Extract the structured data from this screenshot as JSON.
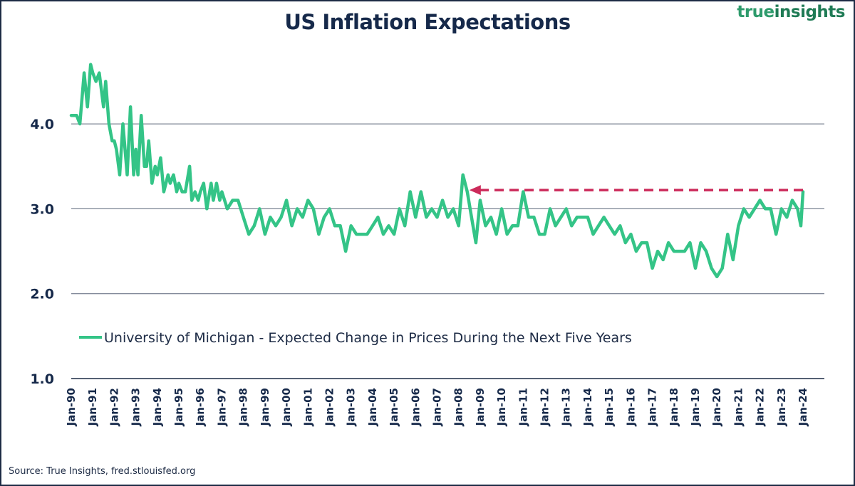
{
  "header": {
    "title": "US Inflation Expectations",
    "brand_part1": "true",
    "brand_part2": "insights"
  },
  "footer": {
    "source": "Source: True Insights, fred.stlouisfed.org"
  },
  "colors": {
    "series": "#34c487",
    "arrow": "#cc2a5a",
    "text": "#16294a",
    "grid": "#5a6478",
    "frame": "#1d2b45"
  },
  "chart_data": {
    "type": "line",
    "title": "US Inflation Expectations",
    "xlabel": "",
    "ylabel": "",
    "ylim": [
      1.0,
      4.8
    ],
    "yticks": [
      1.0,
      2.0,
      3.0,
      4.0
    ],
    "ytick_labels": [
      "1.0",
      "2.0",
      "3.0",
      "4.0"
    ],
    "xlim": [
      1990.0,
      2024.0
    ],
    "xtick_labels": [
      "Jan-90",
      "Jan-91",
      "Jan-92",
      "Jan-93",
      "Jan-94",
      "Jan-95",
      "Jan-96",
      "Jan-97",
      "Jan-98",
      "Jan-99",
      "Jan-00",
      "Jan-01",
      "Jan-02",
      "Jan-03",
      "Jan-04",
      "Jan-05",
      "Jan-06",
      "Jan-07",
      "Jan-08",
      "Jan-09",
      "Jan-10",
      "Jan-11",
      "Jan-12",
      "Jan-13",
      "Jan-14",
      "Jan-15",
      "Jan-16",
      "Jan-17",
      "Jan-18",
      "Jan-19",
      "Jan-20",
      "Jan-21",
      "Jan-22",
      "Jan-23",
      "Jan-24"
    ],
    "grid": true,
    "legend": "center-left",
    "series": [
      {
        "name": "University of Michigan - Expected Change in Prices During the Next Five Years",
        "x": [
          1990.0,
          1990.25,
          1990.4,
          1990.6,
          1990.75,
          1990.9,
          1991.0,
          1991.15,
          1991.3,
          1991.5,
          1991.6,
          1991.75,
          1991.9,
          1992.0,
          1992.1,
          1992.25,
          1992.4,
          1992.6,
          1992.75,
          1992.9,
          1993.0,
          1993.1,
          1993.25,
          1993.4,
          1993.5,
          1993.6,
          1993.75,
          1993.9,
          1994.0,
          1994.15,
          1994.3,
          1994.5,
          1994.6,
          1994.75,
          1994.9,
          1995.0,
          1995.15,
          1995.3,
          1995.5,
          1995.6,
          1995.75,
          1995.9,
          1996.0,
          1996.15,
          1996.3,
          1996.5,
          1996.6,
          1996.75,
          1996.9,
          1997.0,
          1997.25,
          1997.5,
          1997.75,
          1998.0,
          1998.25,
          1998.5,
          1998.75,
          1999.0,
          1999.25,
          1999.5,
          1999.75,
          2000.0,
          2000.25,
          2000.5,
          2000.75,
          2001.0,
          2001.25,
          2001.5,
          2001.75,
          2002.0,
          2002.25,
          2002.5,
          2002.75,
          2003.0,
          2003.25,
          2003.5,
          2003.75,
          2004.0,
          2004.25,
          2004.5,
          2004.75,
          2005.0,
          2005.25,
          2005.5,
          2005.75,
          2006.0,
          2006.25,
          2006.5,
          2006.75,
          2007.0,
          2007.25,
          2007.5,
          2007.75,
          2008.0,
          2008.2,
          2008.4,
          2008.6,
          2008.8,
          2009.0,
          2009.25,
          2009.5,
          2009.75,
          2010.0,
          2010.25,
          2010.5,
          2010.75,
          2011.0,
          2011.25,
          2011.5,
          2011.75,
          2012.0,
          2012.25,
          2012.5,
          2012.75,
          2013.0,
          2013.25,
          2013.5,
          2013.75,
          2014.0,
          2014.25,
          2014.5,
          2014.75,
          2015.0,
          2015.25,
          2015.5,
          2015.75,
          2016.0,
          2016.25,
          2016.5,
          2016.75,
          2017.0,
          2017.25,
          2017.5,
          2017.75,
          2018.0,
          2018.25,
          2018.5,
          2018.75,
          2019.0,
          2019.25,
          2019.5,
          2019.75,
          2020.0,
          2020.25,
          2020.5,
          2020.75,
          2021.0,
          2021.25,
          2021.5,
          2021.75,
          2022.0,
          2022.25,
          2022.5,
          2022.75,
          2023.0,
          2023.25,
          2023.5,
          2023.75,
          2023.9,
          2024.0
        ],
        "y": [
          4.1,
          4.1,
          4.0,
          4.6,
          4.2,
          4.7,
          4.6,
          4.5,
          4.6,
          4.2,
          4.5,
          4.0,
          3.8,
          3.8,
          3.7,
          3.4,
          4.0,
          3.4,
          4.2,
          3.4,
          3.7,
          3.4,
          4.1,
          3.5,
          3.5,
          3.8,
          3.3,
          3.5,
          3.4,
          3.6,
          3.2,
          3.4,
          3.3,
          3.4,
          3.2,
          3.3,
          3.2,
          3.2,
          3.5,
          3.1,
          3.2,
          3.1,
          3.2,
          3.3,
          3.0,
          3.3,
          3.1,
          3.3,
          3.1,
          3.2,
          3.0,
          3.1,
          3.1,
          2.9,
          2.7,
          2.8,
          3.0,
          2.7,
          2.9,
          2.8,
          2.9,
          3.1,
          2.8,
          3.0,
          2.9,
          3.1,
          3.0,
          2.7,
          2.9,
          3.0,
          2.8,
          2.8,
          2.5,
          2.8,
          2.7,
          2.7,
          2.7,
          2.8,
          2.9,
          2.7,
          2.8,
          2.7,
          3.0,
          2.8,
          3.2,
          2.9,
          3.2,
          2.9,
          3.0,
          2.9,
          3.1,
          2.9,
          3.0,
          2.8,
          3.4,
          3.2,
          2.9,
          2.6,
          3.1,
          2.8,
          2.9,
          2.7,
          3.0,
          2.7,
          2.8,
          2.8,
          3.2,
          2.9,
          2.9,
          2.7,
          2.7,
          3.0,
          2.8,
          2.9,
          3.0,
          2.8,
          2.9,
          2.9,
          2.9,
          2.7,
          2.8,
          2.9,
          2.8,
          2.7,
          2.8,
          2.6,
          2.7,
          2.5,
          2.6,
          2.6,
          2.3,
          2.5,
          2.4,
          2.6,
          2.5,
          2.5,
          2.5,
          2.6,
          2.3,
          2.6,
          2.5,
          2.3,
          2.2,
          2.3,
          2.7,
          2.4,
          2.8,
          3.0,
          2.9,
          3.0,
          3.1,
          3.0,
          3.0,
          2.7,
          3.0,
          2.9,
          3.1,
          3.0,
          2.8,
          3.2
        ]
      }
    ],
    "annotations": [
      {
        "type": "dashed-arrow",
        "description": "horizontal dashed arrow from latest value (Jan-24, ~3.2) pointing back to the 2008 peak (~3.2 level)",
        "from": {
          "x": 2024.0,
          "y": 3.22
        },
        "to": {
          "x": 2008.5,
          "y": 3.22
        }
      }
    ]
  }
}
